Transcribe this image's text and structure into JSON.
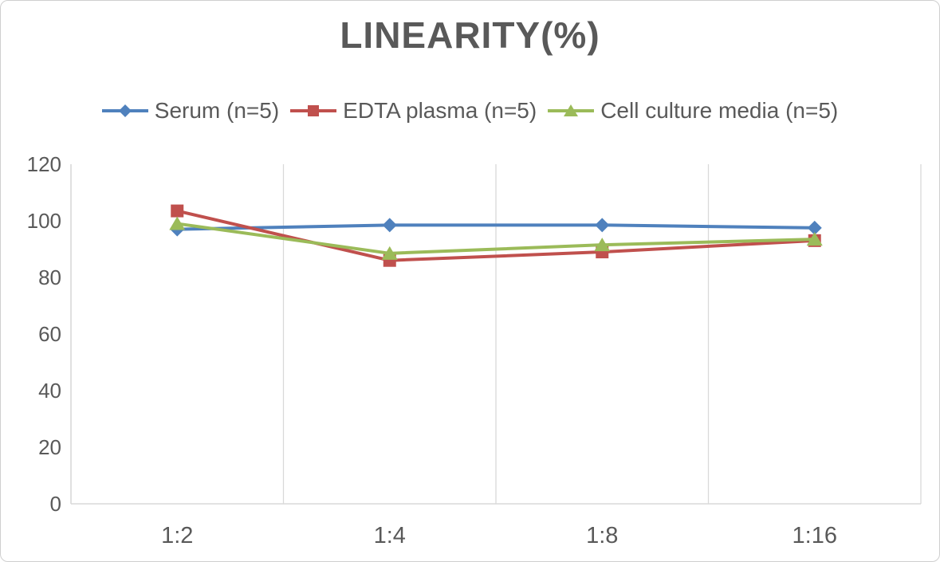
{
  "chart_data": {
    "type": "line",
    "title": "LINEARITY(%)",
    "xlabel": "",
    "ylabel": "",
    "categories": [
      "1:2",
      "1:4",
      "1:8",
      "1:16"
    ],
    "series": [
      {
        "name": "Serum (n=5)",
        "color": "#4F81BD",
        "marker": "diamond",
        "values": [
          97,
          98.5,
          98.5,
          97.5
        ]
      },
      {
        "name": "EDTA plasma (n=5)",
        "color": "#C0504D",
        "marker": "square",
        "values": [
          103.5,
          86,
          89,
          93
        ]
      },
      {
        "name": "Cell culture media (n=5)",
        "color": "#9BBB59",
        "marker": "triangle",
        "values": [
          99,
          88.5,
          91.5,
          93.5
        ]
      }
    ],
    "ylim": [
      0,
      120
    ],
    "ytick_step": 20,
    "yticks": [
      0,
      20,
      40,
      60,
      80,
      100,
      120
    ],
    "grid": "vertical-only",
    "legend_position": "top",
    "colors": {
      "text": "#595959",
      "gridline": "#D9D9D9",
      "axis": "#D9D9D9",
      "background": "#FFFFFF",
      "border": "#CFCFCF"
    }
  }
}
